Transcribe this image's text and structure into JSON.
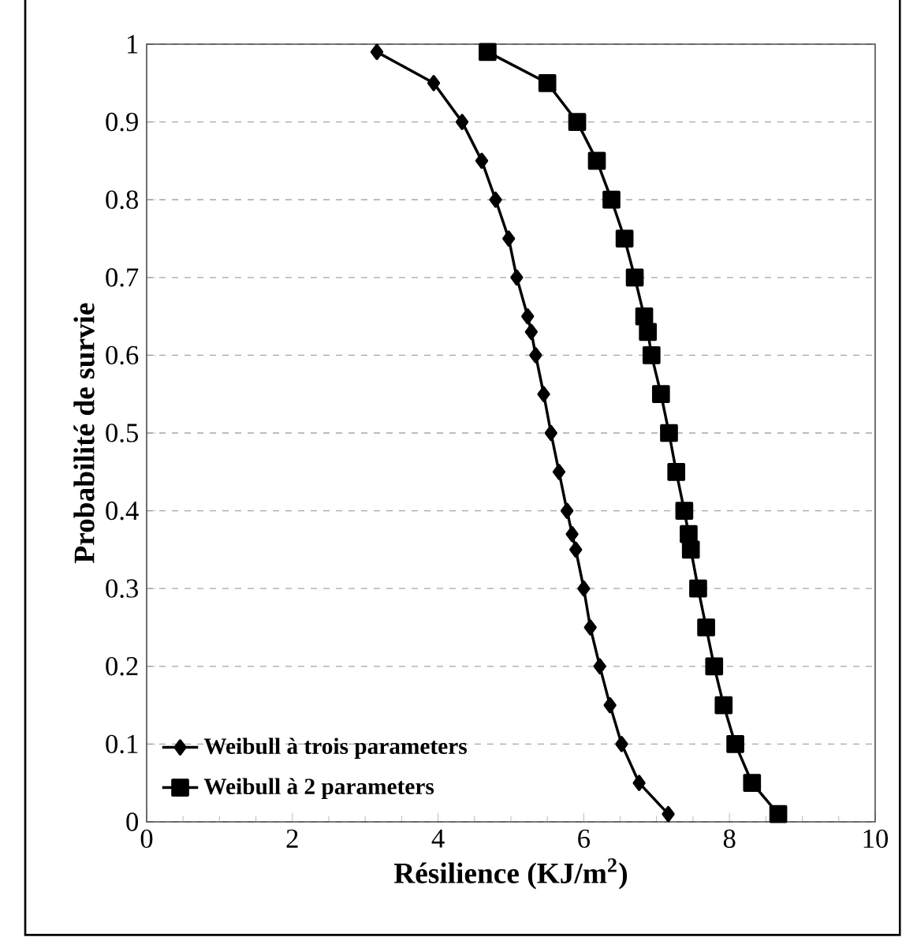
{
  "chart_data": {
    "type": "line",
    "xlabel": "Résilience (KJ/m$^{2}$)",
    "ylabel": "Probabilité  de survie",
    "xlim": [
      0,
      10
    ],
    "ylim": [
      0,
      1
    ],
    "xticks": [
      0,
      2,
      4,
      6,
      8,
      10
    ],
    "yticks": [
      0,
      0.1,
      0.2,
      0.3,
      0.4,
      0.5,
      0.6,
      0.7,
      0.8,
      0.9,
      1
    ],
    "grid": "y",
    "legend": "bottom left",
    "line_style": "solid",
    "series": [
      {
        "name": "Weibull à trois parameters",
        "color": "#000000",
        "marker": "diamond",
        "x": [
          3.16,
          3.94,
          4.33,
          4.6,
          4.79,
          4.97,
          5.08,
          5.23,
          5.28,
          5.34,
          5.45,
          5.55,
          5.66,
          5.77,
          5.84,
          5.89,
          6.0,
          6.09,
          6.22,
          6.36,
          6.52,
          6.76,
          7.16
        ],
        "values": [
          0.99,
          0.95,
          0.9,
          0.85,
          0.8,
          0.75,
          0.7,
          0.65,
          0.63,
          0.6,
          0.55,
          0.5,
          0.45,
          0.4,
          0.37,
          0.35,
          0.3,
          0.25,
          0.2,
          0.15,
          0.1,
          0.05,
          0.01
        ]
      },
      {
        "name": "Weibull à 2 parameters",
        "color": "#000000",
        "marker": "square",
        "x": [
          4.68,
          5.5,
          5.91,
          6.18,
          6.38,
          6.56,
          6.7,
          6.83,
          6.88,
          6.93,
          7.06,
          7.17,
          7.27,
          7.38,
          7.44,
          7.47,
          7.57,
          7.68,
          7.79,
          7.92,
          8.08,
          8.31,
          8.67
        ],
        "values": [
          0.99,
          0.95,
          0.9,
          0.85,
          0.8,
          0.75,
          0.7,
          0.65,
          0.63,
          0.6,
          0.55,
          0.5,
          0.45,
          0.4,
          0.37,
          0.35,
          0.3,
          0.25,
          0.2,
          0.15,
          0.1,
          0.05,
          0.01
        ]
      }
    ]
  }
}
